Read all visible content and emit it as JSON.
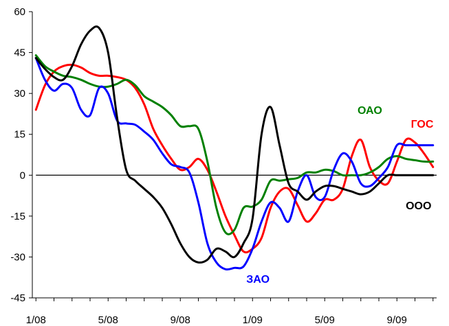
{
  "chart_data": {
    "type": "line",
    "title": "",
    "xlabel": "",
    "ylabel": "",
    "ylim": [
      -45,
      60
    ],
    "y_ticks": [
      -45,
      -30,
      -15,
      0,
      15,
      30,
      45,
      60
    ],
    "x_tick_labels": [
      "1/08",
      "5/08",
      "9/08",
      "1/09",
      "5/09",
      "9/09"
    ],
    "x_tick_label_months": [
      0,
      4,
      8,
      12,
      16,
      20
    ],
    "x_range_months": [
      -0.2,
      22.2
    ],
    "grid": false,
    "zero_line": true,
    "series": [
      {
        "name": "ГОС",
        "color": "#ff0000",
        "label_position": [
          21.4,
          17.5
        ],
        "x": [
          0,
          0.5,
          1,
          1.5,
          2,
          2.5,
          3,
          3.5,
          4,
          4.5,
          5,
          5.5,
          6,
          6.5,
          7,
          7.5,
          8,
          8.5,
          9,
          9.5,
          10,
          10.5,
          11,
          11.5,
          12,
          12.5,
          13,
          13.5,
          14,
          14.5,
          15,
          15.5,
          16,
          16.5,
          17,
          17.5,
          18,
          18.5,
          19,
          19.5,
          20,
          20.5,
          21,
          21.5,
          22
        ],
        "y": [
          24,
          33,
          38,
          40,
          40.5,
          39.5,
          37.5,
          36.5,
          36.5,
          36,
          35,
          32,
          26,
          17,
          11,
          6,
          2,
          3,
          6,
          2,
          -6,
          -15,
          -22,
          -28,
          -27,
          -23,
          -12,
          -6,
          -5,
          -11,
          -17,
          -14,
          -9,
          -9,
          -5,
          7,
          13,
          3,
          -2,
          -3,
          5,
          13,
          12,
          8,
          3
        ]
      },
      {
        "name": "ОАО",
        "color": "#008000",
        "label_position": [
          18.5,
          22.5
        ],
        "x": [
          0,
          0.5,
          1,
          1.5,
          2,
          2.5,
          3,
          3.5,
          4,
          4.5,
          5,
          5.5,
          6,
          6.5,
          7,
          7.5,
          8,
          8.5,
          9,
          9.5,
          10,
          10.5,
          11,
          11.5,
          12,
          12.5,
          13,
          13.5,
          14,
          14.5,
          15,
          15.5,
          16,
          16.5,
          17,
          17.5,
          18,
          18.5,
          19,
          19.5,
          20,
          20.5,
          21,
          21.5,
          22
        ],
        "y": [
          44,
          40,
          38,
          36.5,
          36,
          35,
          33.5,
          32.5,
          32.5,
          33.5,
          35,
          33,
          29,
          27,
          25,
          22,
          18,
          18,
          17,
          5,
          -12,
          -21,
          -20,
          -12,
          -11.5,
          -9,
          -2,
          -2,
          -1.5,
          -1,
          1,
          1,
          2,
          1.5,
          0,
          0,
          0,
          1,
          3,
          6,
          7,
          6,
          5.5,
          5,
          5
        ]
      },
      {
        "name": "ЗАО",
        "color": "#0000ff",
        "label_position": [
          12.3,
          -39.5
        ],
        "x": [
          0,
          0.5,
          1,
          1.5,
          2,
          2.5,
          3,
          3.5,
          4,
          4.5,
          5,
          5.5,
          6,
          6.5,
          7,
          7.5,
          8,
          8.5,
          9,
          9.5,
          10,
          10.5,
          11,
          11.5,
          12,
          12.5,
          13,
          13.5,
          14,
          14.5,
          15,
          15.5,
          16,
          16.5,
          17,
          17.5,
          18,
          18.5,
          19,
          19.5,
          20,
          20.5,
          21,
          21.5,
          22
        ],
        "y": [
          43,
          35,
          31,
          33.5,
          32,
          24,
          22,
          32,
          30,
          20,
          19,
          18.5,
          16,
          13,
          8,
          4,
          3,
          1,
          -10,
          -25,
          -32,
          -34.5,
          -34,
          -33.5,
          -27,
          -17,
          -10,
          -12,
          -17,
          -6,
          0,
          -8,
          -8,
          2,
          8,
          5,
          -3,
          -4,
          -1,
          3,
          11,
          11,
          11,
          11,
          11
        ]
      },
      {
        "name": "ООО",
        "color": "#000000",
        "label_position": [
          21.2,
          -12.5
        ],
        "x": [
          0,
          0.5,
          1,
          1.5,
          2,
          2.5,
          3,
          3.5,
          4,
          4.5,
          5,
          5.5,
          6,
          6.5,
          7,
          7.5,
          8,
          8.5,
          9,
          9.5,
          10,
          10.5,
          11,
          11.5,
          12,
          12.5,
          13,
          13.5,
          14,
          14.5,
          15,
          15.5,
          16,
          16.5,
          17,
          17.5,
          18,
          18.5,
          19,
          19.5,
          20,
          20.5,
          21,
          21.5,
          22
        ],
        "y": [
          43,
          39,
          36,
          35,
          40,
          48,
          53,
          54,
          45,
          21,
          2,
          -2,
          -5,
          -8,
          -12,
          -18,
          -25,
          -30,
          -32,
          -31,
          -27,
          -28,
          -30,
          -25,
          -16,
          15,
          25,
          11,
          -3,
          -6,
          -9,
          -6,
          -4,
          -4,
          -5,
          -6,
          -7,
          -6,
          -3,
          0,
          0,
          0,
          0,
          0,
          0
        ]
      }
    ]
  }
}
